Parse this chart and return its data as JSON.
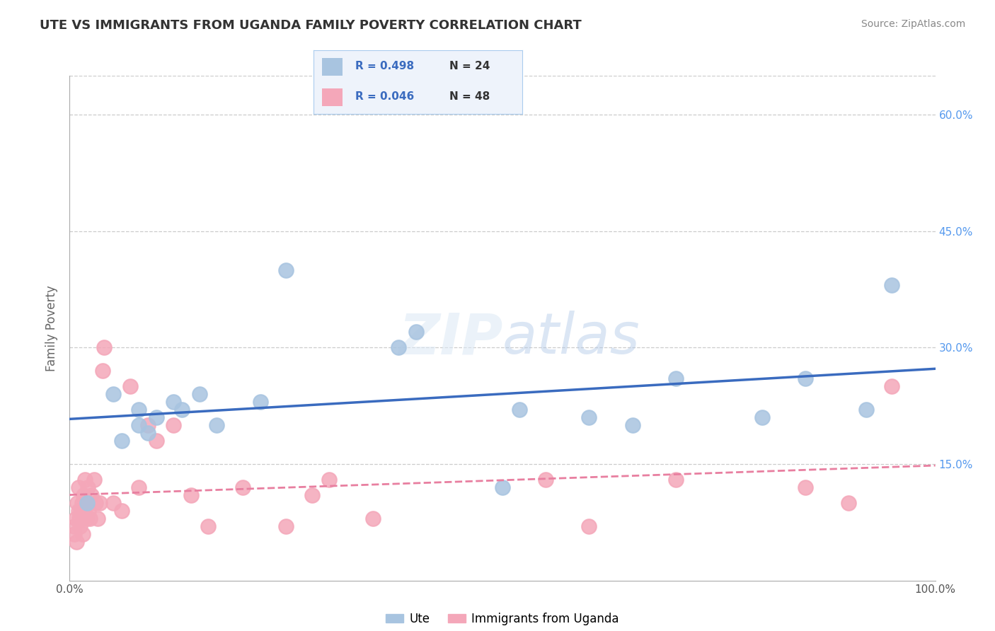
{
  "title": "UTE VS IMMIGRANTS FROM UGANDA FAMILY POVERTY CORRELATION CHART",
  "source": "Source: ZipAtlas.com",
  "xlabel": "",
  "ylabel": "Family Poverty",
  "xlim": [
    0,
    1
  ],
  "ylim": [
    0,
    0.65
  ],
  "x_tick_labels": [
    "0.0%",
    "100.0%"
  ],
  "y_ticks": [
    0.0,
    0.15,
    0.3,
    0.45,
    0.6
  ],
  "y_tick_labels": [
    "",
    "15.0%",
    "30.0%",
    "45.0%",
    "60.0%"
  ],
  "ute_R": "0.498",
  "ute_N": "24",
  "uganda_R": "0.046",
  "uganda_N": "48",
  "ute_scatter_color": "#a8c4e0",
  "uganda_scatter_color": "#f4a7b9",
  "ute_line_color": "#3a6bbf",
  "uganda_line_color": "#e87fa0",
  "legend_fill_color": "#eef3fb",
  "background_color": "#ffffff",
  "grid_color": "#cccccc",
  "right_tick_color": "#5599ee",
  "ute_x": [
    0.02,
    0.05,
    0.06,
    0.08,
    0.08,
    0.09,
    0.1,
    0.12,
    0.13,
    0.15,
    0.17,
    0.22,
    0.25,
    0.38,
    0.4,
    0.5,
    0.52,
    0.6,
    0.65,
    0.7,
    0.8,
    0.85,
    0.92,
    0.95
  ],
  "ute_y": [
    0.1,
    0.24,
    0.18,
    0.22,
    0.2,
    0.19,
    0.21,
    0.23,
    0.22,
    0.24,
    0.2,
    0.23,
    0.4,
    0.3,
    0.32,
    0.12,
    0.22,
    0.21,
    0.2,
    0.26,
    0.21,
    0.26,
    0.22,
    0.38
  ],
  "uganda_x": [
    0.005,
    0.005,
    0.007,
    0.008,
    0.009,
    0.01,
    0.01,
    0.011,
    0.012,
    0.013,
    0.014,
    0.015,
    0.015,
    0.016,
    0.017,
    0.018,
    0.019,
    0.02,
    0.021,
    0.022,
    0.023,
    0.025,
    0.028,
    0.03,
    0.032,
    0.035,
    0.038,
    0.04,
    0.05,
    0.06,
    0.07,
    0.08,
    0.09,
    0.1,
    0.12,
    0.14,
    0.16,
    0.2,
    0.25,
    0.28,
    0.3,
    0.35,
    0.55,
    0.6,
    0.7,
    0.85,
    0.9,
    0.95
  ],
  "uganda_y": [
    0.06,
    0.07,
    0.08,
    0.05,
    0.1,
    0.12,
    0.09,
    0.08,
    0.07,
    0.09,
    0.1,
    0.08,
    0.06,
    0.11,
    0.09,
    0.13,
    0.08,
    0.1,
    0.12,
    0.09,
    0.08,
    0.11,
    0.13,
    0.1,
    0.08,
    0.1,
    0.27,
    0.3,
    0.1,
    0.09,
    0.25,
    0.12,
    0.2,
    0.18,
    0.2,
    0.11,
    0.07,
    0.12,
    0.07,
    0.11,
    0.13,
    0.08,
    0.13,
    0.07,
    0.13,
    0.12,
    0.1,
    0.25
  ]
}
